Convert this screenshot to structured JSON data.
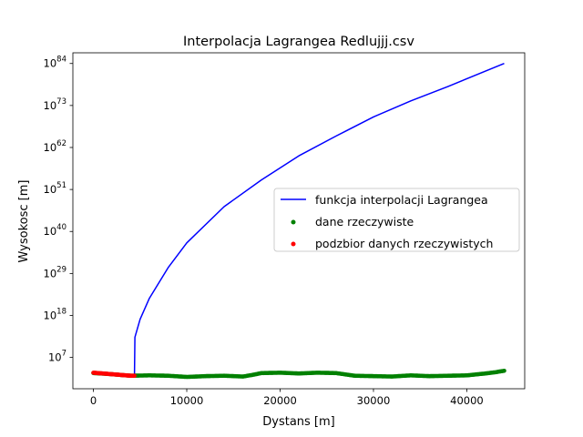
{
  "chart_data": {
    "type": "line",
    "title": "Interpolacja Lagrangea Redlujjj.csv",
    "xlabel": "Dystans [m]",
    "ylabel": "Wysokosc [m]",
    "yscale": "log",
    "xlim": [
      -2200,
      46200
    ],
    "ylim_log10": [
      -1.2,
      86.8
    ],
    "xticks": [
      0,
      10000,
      20000,
      30000,
      40000
    ],
    "xtick_labels": [
      "0",
      "10000",
      "20000",
      "30000",
      "40000"
    ],
    "yticks_log10": [
      7,
      18,
      29,
      40,
      51,
      62,
      73,
      84
    ],
    "ytick_base": "10",
    "ytick_exponents": [
      "7",
      "18",
      "29",
      "40",
      "51",
      "62",
      "73",
      "84"
    ],
    "grid": false,
    "legend_position": "center-right",
    "series": [
      {
        "name": "funkcja interpolacji Lagrangea",
        "kind": "line",
        "color": "#0000ff",
        "x": [
          0,
          4400,
          4450,
          5000,
          6000,
          8000,
          10000,
          14000,
          18000,
          22000,
          26000,
          30000,
          34000,
          38000,
          42000,
          44000
        ],
        "log10_y": [
          2.7,
          2.2,
          12.3,
          17,
          22.5,
          30.5,
          37,
          46.5,
          53.5,
          59.8,
          65,
          70,
          74.2,
          78,
          82,
          84
        ]
      },
      {
        "name": "dane rzeczywiste",
        "kind": "scatter",
        "color": "#008000",
        "x": [
          0,
          2000,
          4000,
          6000,
          8000,
          10000,
          12000,
          14000,
          16000,
          17000,
          18000,
          20000,
          22000,
          24000,
          26000,
          28000,
          30000,
          32000,
          34000,
          36000,
          38000,
          40000,
          42000,
          43000,
          44000
        ],
        "log10_y": [
          2.9,
          2.6,
          2.2,
          2.3,
          2.2,
          1.9,
          2.1,
          2.2,
          2.0,
          2.4,
          2.9,
          3.0,
          2.8,
          3.0,
          2.9,
          2.2,
          2.1,
          2.0,
          2.3,
          2.1,
          2.2,
          2.3,
          2.8,
          3.1,
          3.5
        ]
      },
      {
        "name": "podzbior danych rzeczywistych",
        "kind": "scatter",
        "color": "#ff0000",
        "x": [
          0,
          500,
          1000,
          1500,
          2000,
          2500,
          3000,
          3500,
          4000,
          4400
        ],
        "log10_y": [
          3.0,
          2.9,
          2.8,
          2.7,
          2.6,
          2.5,
          2.4,
          2.3,
          2.2,
          2.2
        ]
      }
    ]
  }
}
